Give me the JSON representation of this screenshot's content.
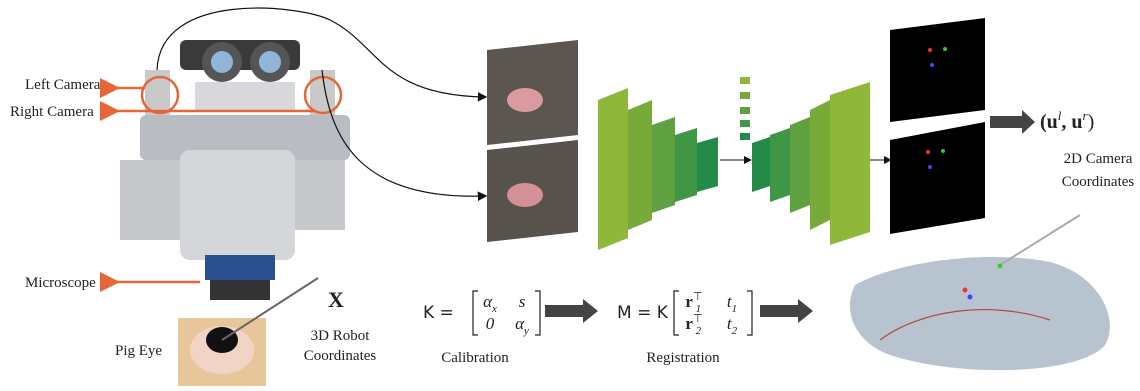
{
  "labels": {
    "left_camera": "Left Camera",
    "right_camera": "Right Camera",
    "microscope": "Microscope",
    "pig_eye": "Pig Eye",
    "robot_symbol": "X",
    "robot_coords": [
      "3D Robot",
      "Coordinates"
    ],
    "camera_coords": [
      "2D Camera",
      "Coordinates"
    ],
    "calibration": "Calibration",
    "registration": "Registration"
  },
  "output": [
    {
      "text": "(u",
      "sup": "l"
    },
    {
      "text": ", u",
      "sup": "r"
    },
    {
      "text": ")"
    }
  ],
  "calibration_eq": {
    "lhs": "K =",
    "rows": [
      [
        {
          "text": "α",
          "sub": "x"
        },
        {
          "text": "s"
        }
      ],
      [
        {
          "text": "0"
        },
        {
          "text": "α",
          "sub": "y"
        }
      ]
    ]
  },
  "registration_eq": {
    "lhs": "M = K",
    "rows": [
      [
        {
          "text": "r",
          "sub": "1",
          "sup": "⊤"
        },
        {
          "text": "t",
          "sub": "1"
        }
      ],
      [
        {
          "text": "r",
          "sub": "2",
          "sup": "⊤"
        },
        {
          "text": "t",
          "sub": "2"
        }
      ]
    ]
  }
}
